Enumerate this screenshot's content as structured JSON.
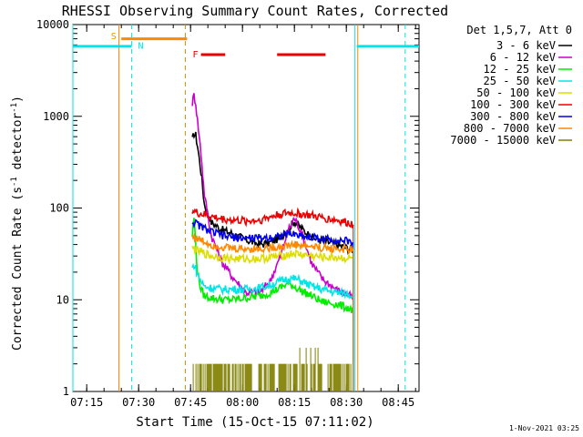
{
  "chart_data": {
    "type": "line",
    "title": "RHESSI Observing Summary Count Rates, Corrected",
    "xlabel": "Start Time (15-Oct-15 07:11:02)",
    "ylabel_main": "Corrected Count Rate (s",
    "ylabel_sup1": "-1",
    "ylabel_mid": " detector",
    "ylabel_sup2": "-1",
    "ylabel_end": ")",
    "y_scale": "log",
    "ylim": [
      1,
      10000
    ],
    "xlim_minutes": [
      0,
      100
    ],
    "x_ticks": [
      {
        "m": 4,
        "label": "07:15"
      },
      {
        "m": 19,
        "label": "07:30"
      },
      {
        "m": 34,
        "label": "07:45"
      },
      {
        "m": 49,
        "label": "08:00"
      },
      {
        "m": 64,
        "label": "08:15"
      },
      {
        "m": 79,
        "label": "08:30"
      },
      {
        "m": 94,
        "label": "08:45"
      }
    ],
    "y_ticks": [
      {
        "v": 1,
        "label": "1"
      },
      {
        "v": 10,
        "label": "10"
      },
      {
        "v": 100,
        "label": "100"
      },
      {
        "v": 1000,
        "label": "1000"
      },
      {
        "v": 10000,
        "label": "10000"
      }
    ],
    "legend_header": "Det 1,5,7, Att 0",
    "legend_position": "right",
    "series": [
      {
        "name": "3 - 6 keV",
        "color": "#000000",
        "x": [
          34.5,
          35,
          35.5,
          36,
          37,
          38,
          40,
          43,
          46,
          50,
          54,
          57,
          60,
          62,
          64,
          66,
          69,
          72,
          76,
          80,
          81
        ],
        "y": [
          550,
          650,
          620,
          480,
          250,
          110,
          70,
          58,
          53,
          45,
          40,
          42,
          48,
          58,
          72,
          60,
          48,
          44,
          40,
          36,
          35
        ]
      },
      {
        "name": "6 - 12 keV",
        "color": "#cc00cc",
        "x": [
          34.5,
          35,
          35.5,
          36,
          37,
          38,
          40,
          43,
          46,
          50,
          54,
          57,
          60,
          62,
          64,
          66,
          69,
          72,
          76,
          80,
          81
        ],
        "y": [
          1400,
          1700,
          1400,
          900,
          400,
          140,
          50,
          26,
          18,
          12,
          12,
          16,
          30,
          55,
          78,
          55,
          25,
          17,
          13,
          11,
          10
        ]
      },
      {
        "name": "12 - 25 keV",
        "color": "#00ee00",
        "x": [
          34.5,
          35,
          35.5,
          36,
          37,
          38,
          40,
          43,
          46,
          50,
          54,
          57,
          60,
          62,
          64,
          66,
          69,
          72,
          76,
          80,
          81
        ],
        "y": [
          50,
          80,
          40,
          20,
          13,
          11,
          10.5,
          10,
          10,
          10.5,
          11,
          12,
          13.5,
          15,
          14,
          12.5,
          11,
          9.5,
          9,
          8,
          7.5
        ]
      },
      {
        "name": "25 - 50 keV",
        "color": "#00e5e5",
        "x": [
          34.5,
          35,
          35.5,
          36,
          37,
          38,
          40,
          43,
          46,
          50,
          54,
          57,
          60,
          62,
          64,
          66,
          69,
          72,
          76,
          80,
          81
        ],
        "y": [
          22,
          24,
          22,
          19,
          16,
          14,
          13.5,
          13,
          13,
          13,
          13.5,
          14.5,
          16,
          17,
          17,
          16,
          14,
          13,
          12,
          11.5,
          11
        ]
      },
      {
        "name": "50 - 100 keV",
        "color": "#dddd00",
        "x": [
          34.5,
          35,
          36,
          38,
          40,
          43,
          46,
          50,
          54,
          57,
          60,
          62,
          64,
          66,
          69,
          72,
          76,
          80,
          81
        ],
        "y": [
          36,
          36,
          34,
          32,
          30,
          29,
          28,
          28,
          28,
          29,
          30,
          31,
          32,
          31,
          30,
          29,
          29,
          28,
          28
        ]
      },
      {
        "name": "100 - 300 keV",
        "color": "#ee0000",
        "x": [
          34.5,
          35,
          36,
          38,
          40,
          43,
          46,
          50,
          54,
          57,
          60,
          62,
          64,
          66,
          69,
          72,
          76,
          80,
          81
        ],
        "y": [
          95,
          92,
          88,
          84,
          80,
          76,
          74,
          72,
          74,
          80,
          86,
          88,
          88,
          86,
          82,
          78,
          74,
          68,
          66
        ]
      },
      {
        "name": "300 - 800 keV",
        "color": "#0000ee",
        "x": [
          34.5,
          35,
          36,
          38,
          40,
          43,
          46,
          50,
          54,
          57,
          60,
          62,
          64,
          66,
          69,
          72,
          76,
          80,
          81
        ],
        "y": [
          70,
          70,
          66,
          60,
          55,
          50,
          48,
          47,
          47,
          48,
          50,
          52,
          52,
          50,
          48,
          46,
          45,
          43,
          42
        ]
      },
      {
        "name": "800 - 7000 keV",
        "color": "#ff8800",
        "x": [
          34.5,
          35,
          36,
          38,
          40,
          43,
          46,
          50,
          54,
          57,
          60,
          62,
          64,
          66,
          69,
          72,
          76,
          80,
          81
        ],
        "y": [
          50,
          48,
          46,
          43,
          40,
          38,
          36,
          36,
          36,
          37,
          38,
          39,
          40,
          39,
          38,
          37,
          36,
          35,
          34
        ]
      },
      {
        "name": "7000 - 15000 keV",
        "color": "#808000",
        "x": [
          34.5,
          38,
          42,
          46,
          50,
          54,
          56,
          58,
          60,
          62,
          64,
          66,
          68,
          70,
          72,
          74,
          76,
          78,
          80,
          81
        ],
        "y": [
          1.4,
          1.4,
          1.5,
          1.4,
          1.5,
          1.5,
          1.4,
          1.7,
          1.6,
          2.0,
          2.2,
          1.9,
          1.7,
          1.8,
          1.6,
          1.5,
          1.5,
          1.5,
          1.4,
          1.4
        ]
      }
    ],
    "state_bars": [
      {
        "label": "S",
        "color": "#ff8800",
        "start": 14,
        "end": 33,
        "y": 7000,
        "show_label": true
      },
      {
        "label": "N",
        "color": "#00e5e5",
        "start": 0,
        "end": 17,
        "y": 5800,
        "show_label": false
      },
      {
        "label": "N",
        "color": "#00e5e5",
        "start": 82,
        "end": 100,
        "y": 5800,
        "show_label": false
      },
      {
        "label": "F",
        "color": "#ee0000",
        "start": 37,
        "end": 44,
        "y": 4700,
        "show_label": true
      },
      {
        "label": "F",
        "color": "#ee0000",
        "start": 59,
        "end": 73,
        "y": 4700,
        "show_label": false
      }
    ],
    "state_labels": [
      {
        "text": "S",
        "color": "#ff8800",
        "m": 11,
        "v": 7600
      },
      {
        "text": "N",
        "color": "#00e5e5",
        "m": 18.8,
        "v": 6000
      },
      {
        "text": "F",
        "color": "#ee0000",
        "m": 34.6,
        "v": 4800
      }
    ],
    "vertical_lines": [
      {
        "m": 0,
        "color": "#00e5e5",
        "style": "solid"
      },
      {
        "m": 13.3,
        "color": "#ff8800",
        "style": "solid"
      },
      {
        "m": 17,
        "color": "#00e5e5",
        "style": "dashed"
      },
      {
        "m": 32.5,
        "color": "#ff8800",
        "style": "dashed"
      },
      {
        "m": 81.5,
        "color": "#00e5e5",
        "style": "solid"
      },
      {
        "m": 82.3,
        "color": "#ff8800",
        "style": "solid"
      },
      {
        "m": 96,
        "color": "#00e5e5",
        "style": "dashed"
      }
    ],
    "timestamp": "1-Nov-2021 03:25"
  }
}
